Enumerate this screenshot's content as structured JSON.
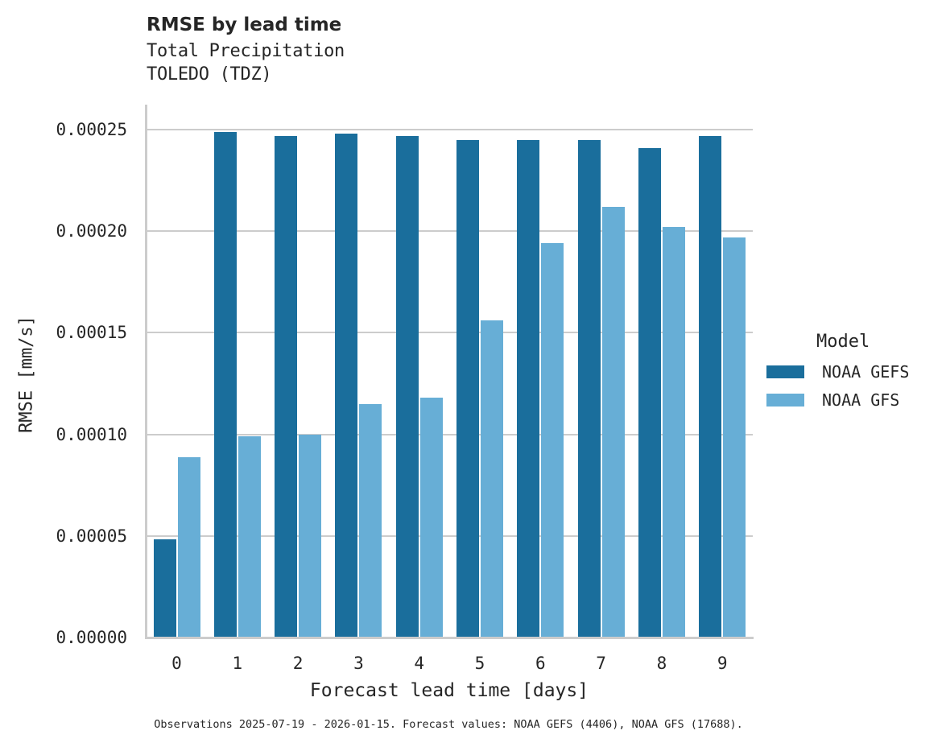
{
  "title": "RMSE by lead time",
  "subtitle_lines": [
    "Total Precipitation",
    "TOLEDO (TDZ)"
  ],
  "footnote": "Observations 2025-07-19 - 2026-01-15. Forecast values: NOAA GEFS (4406), NOAA GFS (17688).",
  "colors": {
    "NOAA GEFS": "#1a6e9c",
    "NOAA GFS": "#67aed6",
    "grid": "#cccccc"
  },
  "legend": {
    "title": "Model",
    "items": [
      "NOAA GEFS",
      "NOAA GFS"
    ]
  },
  "chart_data": {
    "type": "bar",
    "title": "RMSE by lead time",
    "subtitle": "Total Precipitation / TOLEDO (TDZ)",
    "xlabel": "Forecast lead time [days]",
    "ylabel": "RMSE [mm/s]",
    "categories": [
      "0",
      "1",
      "2",
      "3",
      "4",
      "5",
      "6",
      "7",
      "8",
      "9"
    ],
    "series": [
      {
        "name": "NOAA GEFS",
        "values": [
          4.85e-05,
          0.000249,
          0.000247,
          0.000248,
          0.000247,
          0.000245,
          0.000245,
          0.000245,
          0.000241,
          0.000247
        ]
      },
      {
        "name": "NOAA GFS",
        "values": [
          8.88e-05,
          9.9e-05,
          0.0001,
          0.000115,
          0.000118,
          0.000156,
          0.000194,
          0.000212,
          0.000202,
          0.000197
        ]
      }
    ],
    "yticks": [
      "0.00000",
      "0.00005",
      "0.00010",
      "0.00015",
      "0.00020",
      "0.00025"
    ],
    "ylim": [
      0,
      0.000263
    ],
    "grid": "horizontal",
    "legend_position": "right",
    "legend_title": "Model"
  }
}
